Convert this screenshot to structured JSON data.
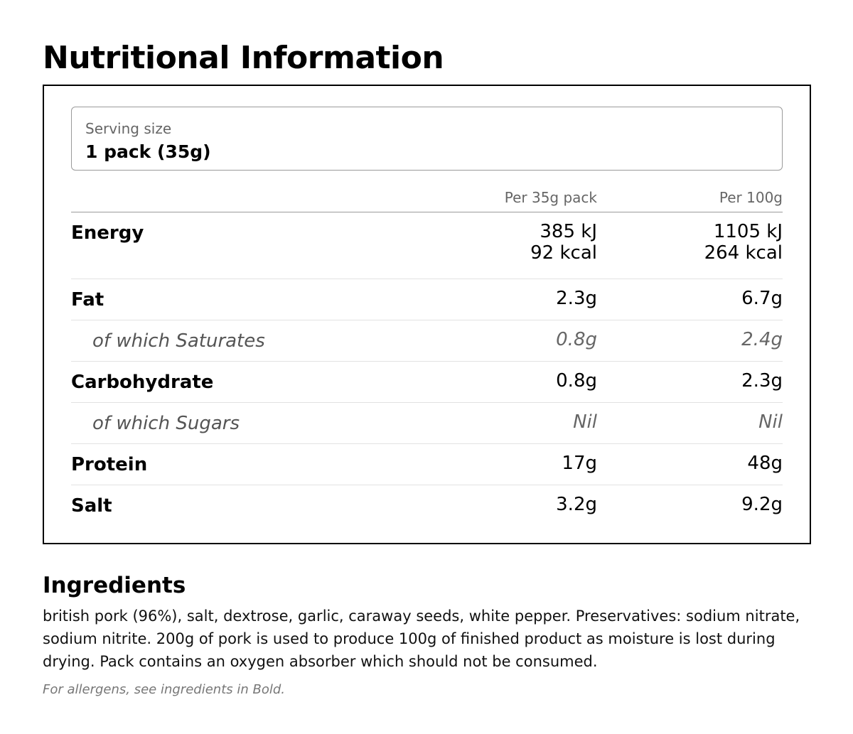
{
  "title": "Nutritional Information",
  "serving": {
    "label": "Serving size",
    "value": "1 pack (35g)"
  },
  "table": {
    "columns": [
      "Per 35g pack",
      "Per 100g"
    ],
    "rows": [
      {
        "name": "Energy",
        "per_pack": [
          "385 kJ",
          "92 kcal"
        ],
        "per_100g": [
          "1105 kJ",
          "264 kcal"
        ],
        "sub": false
      },
      {
        "name": "Fat",
        "per_pack": "2.3g",
        "per_100g": "6.7g",
        "sub": false
      },
      {
        "name": "of which Saturates",
        "per_pack": "0.8g",
        "per_100g": "2.4g",
        "sub": true
      },
      {
        "name": "Carbohydrate",
        "per_pack": "0.8g",
        "per_100g": "2.3g",
        "sub": false
      },
      {
        "name": "of which Sugars",
        "per_pack": "Nil",
        "per_100g": "Nil",
        "sub": true
      },
      {
        "name": "Protein",
        "per_pack": "17g",
        "per_100g": "48g",
        "sub": false
      },
      {
        "name": "Salt",
        "per_pack": "3.2g",
        "per_100g": "9.2g",
        "sub": false
      }
    ]
  },
  "ingredients": {
    "title": "Ingredients",
    "text": "british pork (96%), salt, dextrose, garlic, caraway seeds, white pepper. Preservatives: sodium nitrate, sodium nitrite. 200g of pork is used to produce 100g of finished product as moisture is lost during drying. Pack contains an oxygen absorber which should not be consumed.",
    "allergen_note": "For allergens, see ingredients in Bold."
  }
}
